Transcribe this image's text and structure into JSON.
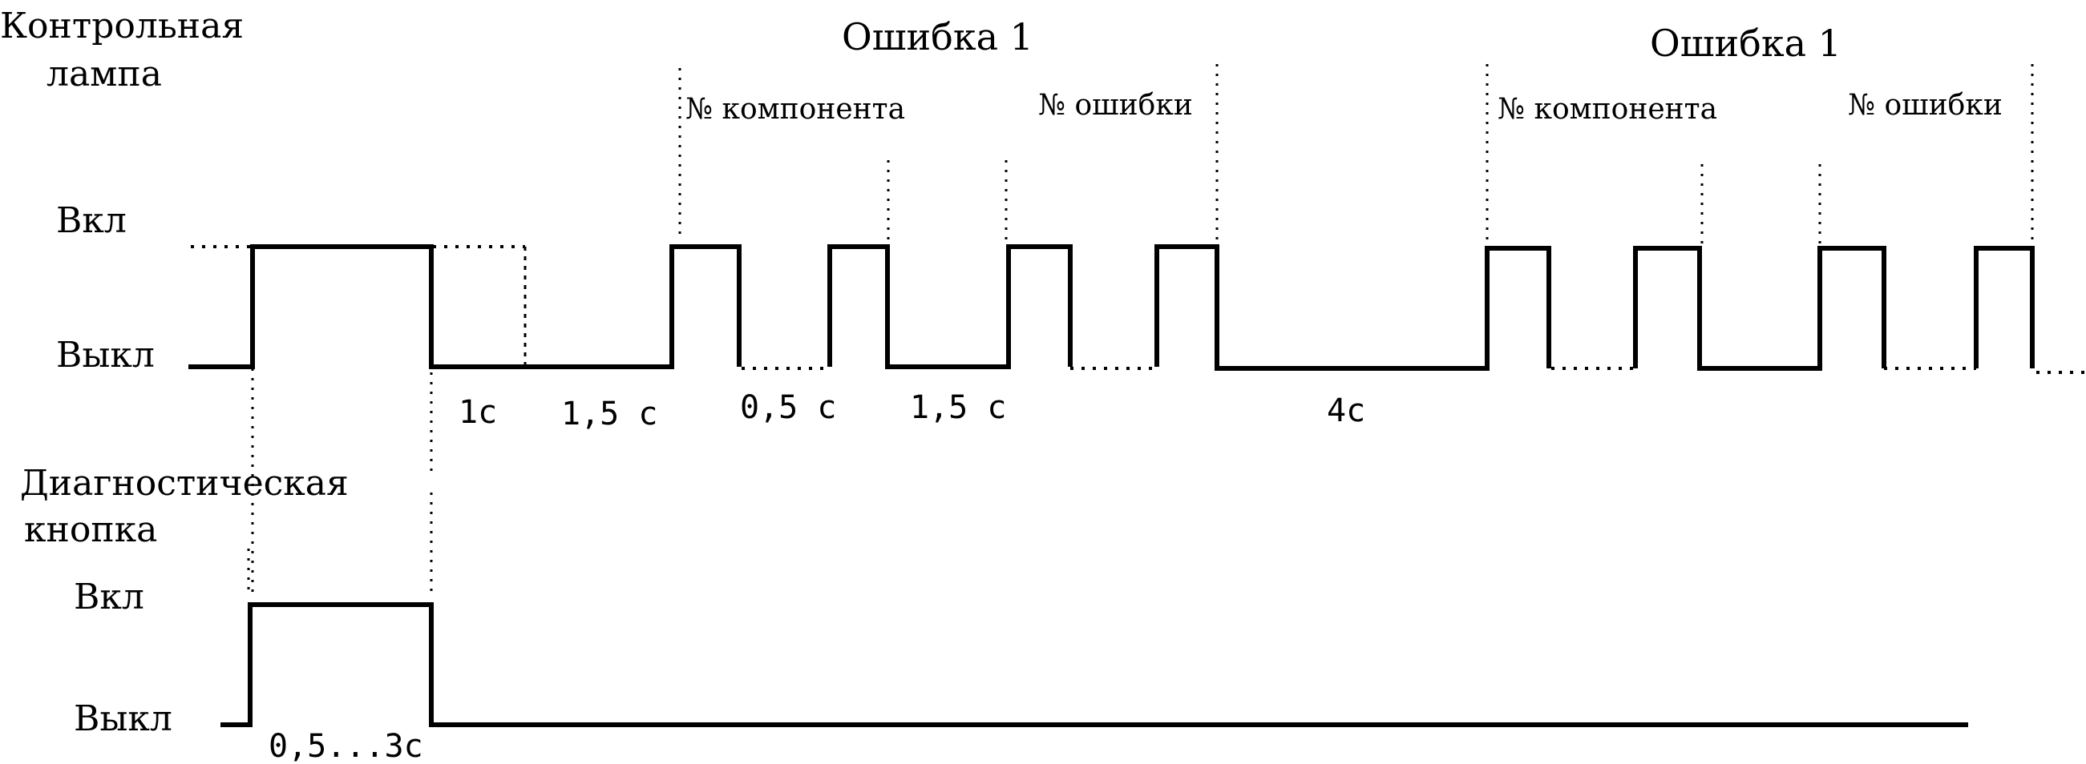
{
  "lamp": {
    "title_line1": "Контрольная",
    "title_line2": "лампа",
    "on_label": "Вкл",
    "off_label": "Выкл"
  },
  "button": {
    "title_line1": "Диагностическая",
    "title_line2": "кнопка",
    "on_label": "Вкл",
    "off_label": "Выкл",
    "press_duration": "0,5...3с"
  },
  "error_groups": [
    {
      "title": "Ошибка 1",
      "component_label": "№ компонента",
      "error_label": "№ ошибки"
    },
    {
      "title": "Ошибка 1",
      "component_label": "№ компонента",
      "error_label": "№ ошибки"
    }
  ],
  "durations": {
    "after_press": "1с",
    "before_code": "1,5 с",
    "pulse_gap": "0,5 с",
    "digit_gap": "1,5 с",
    "code_repeat": "4с"
  }
}
